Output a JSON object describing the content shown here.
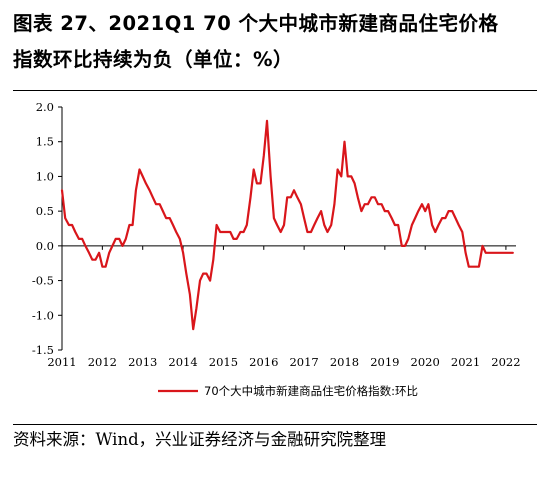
{
  "title": {
    "line1": "图表 27、2021Q1 70 个大中城市新建商品住宅价格",
    "line2": "指数环比持续为负（单位：%）"
  },
  "source": "资料来源：Wind，兴业证券经济与金融研究院整理",
  "chart_data": {
    "type": "line",
    "title": "",
    "xlabel": "",
    "ylabel": "",
    "ylim": [
      -1.5,
      2.0
    ],
    "yticks": [
      "2.0",
      "1.5",
      "1.0",
      "0.5",
      "0.0",
      "-0.5",
      "-1.0",
      "-1.5"
    ],
    "xlim": [
      2011.0,
      2022.25
    ],
    "xticks": [
      "2011",
      "2012",
      "2013",
      "2014",
      "2015",
      "2016",
      "2017",
      "2018",
      "2019",
      "2020",
      "2021",
      "2022"
    ],
    "grid": false,
    "legend_position": "bottom-center",
    "series": [
      {
        "name": "70个大中城市新建商品住宅价格指数:环比",
        "color": "#d9161b",
        "x": [
          2011.0,
          2011.08,
          2011.17,
          2011.25,
          2011.33,
          2011.42,
          2011.5,
          2011.58,
          2011.67,
          2011.75,
          2011.83,
          2011.92,
          2012.0,
          2012.08,
          2012.17,
          2012.25,
          2012.33,
          2012.42,
          2012.5,
          2012.58,
          2012.67,
          2012.75,
          2012.83,
          2012.92,
          2013.0,
          2013.08,
          2013.17,
          2013.25,
          2013.33,
          2013.42,
          2013.5,
          2013.58,
          2013.67,
          2013.75,
          2013.83,
          2013.92,
          2014.0,
          2014.08,
          2014.17,
          2014.25,
          2014.33,
          2014.42,
          2014.5,
          2014.58,
          2014.67,
          2014.75,
          2014.83,
          2014.92,
          2015.0,
          2015.08,
          2015.17,
          2015.25,
          2015.33,
          2015.42,
          2015.5,
          2015.58,
          2015.67,
          2015.75,
          2015.83,
          2015.92,
          2016.0,
          2016.08,
          2016.17,
          2016.25,
          2016.33,
          2016.42,
          2016.5,
          2016.58,
          2016.67,
          2016.75,
          2016.83,
          2016.92,
          2017.0,
          2017.08,
          2017.17,
          2017.25,
          2017.33,
          2017.42,
          2017.5,
          2017.58,
          2017.67,
          2017.75,
          2017.83,
          2017.92,
          2018.0,
          2018.08,
          2018.17,
          2018.25,
          2018.33,
          2018.42,
          2018.5,
          2018.58,
          2018.67,
          2018.75,
          2018.83,
          2018.92,
          2019.0,
          2019.08,
          2019.17,
          2019.25,
          2019.33,
          2019.42,
          2019.5,
          2019.58,
          2019.67,
          2019.75,
          2019.83,
          2019.92,
          2020.0,
          2020.08,
          2020.17,
          2020.25,
          2020.33,
          2020.42,
          2020.5,
          2020.58,
          2020.67,
          2020.75,
          2020.83,
          2020.92,
          2021.0,
          2021.08,
          2021.17,
          2021.25,
          2021.33,
          2021.42,
          2021.5,
          2021.58,
          2021.67,
          2021.75,
          2021.83,
          2021.92,
          2022.0,
          2022.08,
          2022.17
        ],
        "values": [
          0.8,
          0.4,
          0.3,
          0.3,
          0.2,
          0.1,
          0.1,
          0.0,
          -0.1,
          -0.2,
          -0.2,
          -0.1,
          -0.3,
          -0.3,
          -0.1,
          0.0,
          0.1,
          0.1,
          0.0,
          0.1,
          0.3,
          0.3,
          0.8,
          1.1,
          1.0,
          0.9,
          0.8,
          0.7,
          0.6,
          0.6,
          0.5,
          0.4,
          0.4,
          0.3,
          0.2,
          0.1,
          -0.1,
          -0.4,
          -0.7,
          -1.2,
          -0.9,
          -0.5,
          -0.4,
          -0.4,
          -0.5,
          -0.2,
          0.3,
          0.2,
          0.2,
          0.2,
          0.2,
          0.1,
          0.1,
          0.2,
          0.2,
          0.3,
          0.7,
          1.1,
          0.9,
          0.9,
          1.3,
          1.8,
          1.0,
          0.4,
          0.3,
          0.2,
          0.3,
          0.7,
          0.7,
          0.8,
          0.7,
          0.6,
          0.4,
          0.2,
          0.2,
          0.3,
          0.4,
          0.5,
          0.3,
          0.2,
          0.3,
          0.6,
          1.1,
          1.0,
          1.5,
          1.0,
          1.0,
          0.9,
          0.7,
          0.5,
          0.6,
          0.6,
          0.7,
          0.7,
          0.6,
          0.6,
          0.5,
          0.5,
          0.4,
          0.3,
          0.3,
          0.0,
          0.0,
          0.1,
          0.3,
          0.4,
          0.5,
          0.6,
          0.5,
          0.6,
          0.3,
          0.2,
          0.3,
          0.4,
          0.4,
          0.5,
          0.5,
          0.4,
          0.3,
          0.2,
          -0.1,
          -0.3,
          -0.3,
          -0.3,
          -0.3,
          0.0,
          -0.1,
          -0.1,
          -0.1,
          -0.1,
          -0.1,
          -0.1,
          -0.1,
          -0.1,
          -0.1
        ]
      }
    ]
  }
}
